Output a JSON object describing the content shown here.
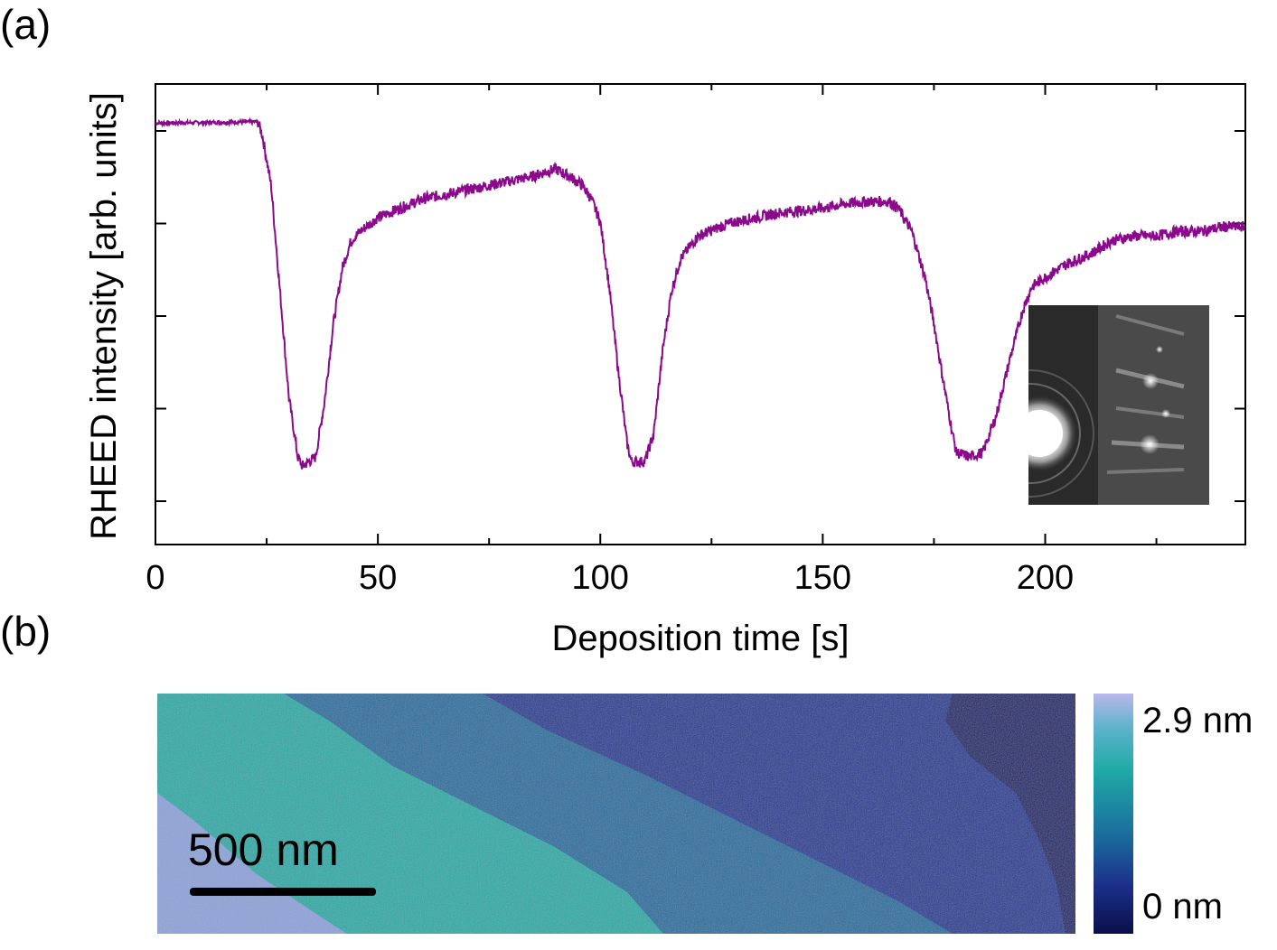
{
  "panels": {
    "a_label": "(a)",
    "b_label": "(b)"
  },
  "chart_data": {
    "type": "line",
    "title": "",
    "xlabel": "Deposition time [s]",
    "ylabel": "RHEED intensity [arb. units]",
    "xlim": [
      0,
      245
    ],
    "ylim": [
      0,
      1
    ],
    "x_ticks": [
      0,
      50,
      100,
      150,
      200
    ],
    "x_tick_labels": [
      "0",
      "50",
      "100",
      "150",
      "200"
    ],
    "y_tick_labels": [],
    "series": [
      {
        "name": "RHEED intensity",
        "color": "#8b0a8b",
        "x": [
          0,
          23,
          24,
          26,
          28,
          30,
          32,
          33,
          36,
          38,
          40,
          42,
          44,
          46,
          50,
          55,
          60,
          65,
          70,
          75,
          80,
          85,
          88,
          90,
          93,
          96,
          98,
          100,
          102,
          104,
          106,
          107,
          110,
          112,
          114,
          116,
          118,
          122,
          127,
          130,
          135,
          140,
          145,
          150,
          155,
          160,
          165,
          167,
          170,
          173,
          175,
          177,
          179,
          180,
          183,
          186,
          189,
          192,
          195,
          197,
          200,
          205,
          210,
          215,
          220,
          225,
          230,
          235,
          240,
          245
        ],
        "y": [
          0.915,
          0.918,
          0.89,
          0.78,
          0.55,
          0.32,
          0.19,
          0.17,
          0.19,
          0.31,
          0.48,
          0.6,
          0.66,
          0.68,
          0.71,
          0.73,
          0.75,
          0.76,
          0.77,
          0.78,
          0.79,
          0.8,
          0.81,
          0.815,
          0.8,
          0.78,
          0.75,
          0.7,
          0.56,
          0.38,
          0.22,
          0.18,
          0.18,
          0.24,
          0.42,
          0.55,
          0.62,
          0.67,
          0.69,
          0.7,
          0.71,
          0.72,
          0.725,
          0.73,
          0.74,
          0.745,
          0.745,
          0.73,
          0.68,
          0.58,
          0.48,
          0.36,
          0.25,
          0.2,
          0.19,
          0.2,
          0.28,
          0.4,
          0.51,
          0.56,
          0.58,
          0.61,
          0.63,
          0.66,
          0.67,
          0.67,
          0.68,
          0.68,
          0.69,
          0.69
        ]
      }
    ],
    "inset": {
      "description_name": "RHEED pattern"
    }
  },
  "afm": {
    "scale_bar_label": "500 nm",
    "colorbar_max_label": "2.9 nm",
    "colorbar_min_label": "0 nm",
    "colors": {
      "level1": "#8fa3d8",
      "level2": "#1faaa6",
      "level3": "#1b6f9e",
      "level4": "#1d3a93",
      "level5": "#0c1a6b"
    }
  }
}
